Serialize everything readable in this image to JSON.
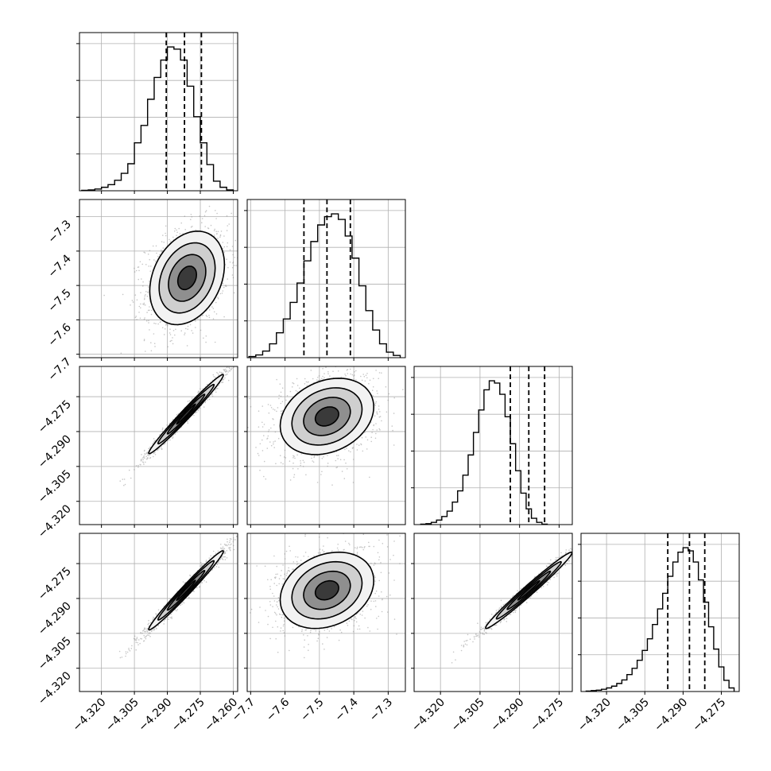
{
  "chart_data": {
    "type": "corner",
    "parameters": 4,
    "panels": [
      {
        "type": "histogram",
        "row": 0,
        "col": 0,
        "xlim": [
          -4.33,
          -4.258
        ],
        "bins": [
          -4.3275,
          -4.3245,
          -4.3215,
          -4.3185,
          -4.3155,
          -4.3125,
          -4.3095,
          -4.3065,
          -4.3035,
          -4.3005,
          -4.2975,
          -4.2945,
          -4.2915,
          -4.2885,
          -4.2855,
          -4.2825,
          -4.2795,
          -4.2765,
          -4.2735,
          -4.2705,
          -4.2675,
          -4.2645,
          -4.2615
        ],
        "counts": [
          1,
          2,
          4,
          8,
          14,
          24,
          40,
          62,
          110,
          150,
          210,
          260,
          300,
          330,
          325,
          300,
          240,
          170,
          110,
          60,
          22,
          8,
          2
        ],
        "quantiles": [
          -4.2905,
          -4.2822,
          -4.2745
        ],
        "yticks_count": 4
      },
      {
        "type": "histogram",
        "row": 1,
        "col": 1,
        "xlim": [
          -7.71,
          -7.25
        ],
        "bins": [
          -7.695,
          -7.675,
          -7.655,
          -7.635,
          -7.615,
          -7.595,
          -7.575,
          -7.555,
          -7.535,
          -7.515,
          -7.495,
          -7.475,
          -7.455,
          -7.435,
          -7.415,
          -7.395,
          -7.375,
          -7.355,
          -7.335,
          -7.315,
          -7.295,
          -7.275
        ],
        "counts": [
          2,
          5,
          12,
          25,
          45,
          70,
          100,
          135,
          175,
          210,
          240,
          255,
          260,
          250,
          220,
          180,
          130,
          85,
          50,
          25,
          10,
          4
        ],
        "quantiles": [
          -7.545,
          -7.478,
          -7.41
        ],
        "yticks_count": 4
      },
      {
        "type": "histogram",
        "row": 2,
        "col": 2,
        "xlim": [
          -4.33,
          -4.27
        ],
        "bins": [
          -4.3265,
          -4.3245,
          -4.3225,
          -4.3205,
          -4.3185,
          -4.3165,
          -4.3145,
          -4.3125,
          -4.3105,
          -4.3085,
          -4.3065,
          -4.3045,
          -4.3025,
          -4.3005,
          -4.2985,
          -4.2965,
          -4.2945,
          -4.2925,
          -4.2905,
          -4.2885,
          -4.2865,
          -4.2845,
          -4.2825,
          -4.2805
        ],
        "counts": [
          1,
          2,
          5,
          10,
          18,
          30,
          50,
          75,
          110,
          155,
          205,
          255,
          300,
          320,
          315,
          290,
          240,
          180,
          120,
          70,
          35,
          14,
          5,
          1
        ],
        "quantiles": [
          -4.2935,
          -4.2865,
          -4.2805
        ],
        "yticks_count": 4
      },
      {
        "type": "histogram",
        "row": 3,
        "col": 3,
        "xlim": [
          -4.33,
          -4.268
        ],
        "bins": [
          -4.327,
          -4.325,
          -4.323,
          -4.321,
          -4.319,
          -4.317,
          -4.315,
          -4.313,
          -4.311,
          -4.309,
          -4.307,
          -4.305,
          -4.303,
          -4.301,
          -4.299,
          -4.297,
          -4.295,
          -4.293,
          -4.291,
          -4.289,
          -4.287,
          -4.285,
          -4.283,
          -4.281,
          -4.279,
          -4.277,
          -4.275,
          -4.273,
          -4.271
        ],
        "counts": [
          1,
          2,
          3,
          5,
          8,
          12,
          18,
          26,
          38,
          52,
          70,
          92,
          118,
          150,
          185,
          220,
          258,
          290,
          312,
          322,
          315,
          290,
          250,
          200,
          145,
          95,
          55,
          25,
          8
        ],
        "quantiles": [
          -4.296,
          -4.2875,
          -4.2815
        ],
        "yticks_count": 4
      },
      {
        "type": "density",
        "row": 1,
        "col": 0,
        "xlim": [
          -4.33,
          -4.258
        ],
        "ylim": [
          -7.71,
          -7.25
        ],
        "center": [
          -4.281,
          -7.478
        ],
        "sd": [
          0.0085,
          0.068
        ],
        "corr": 0.28
      },
      {
        "type": "density",
        "row": 2,
        "col": 0,
        "xlim": [
          -4.33,
          -4.258
        ],
        "ylim": [
          -4.33,
          -4.262
        ],
        "center": [
          -4.2815,
          -4.2825
        ],
        "sd": [
          0.0085,
          0.0085
        ],
        "corr": 0.985
      },
      {
        "type": "density",
        "row": 2,
        "col": 1,
        "xlim": [
          -7.71,
          -7.25
        ],
        "ylim": [
          -4.33,
          -4.262
        ],
        "center": [
          -7.478,
          -4.2835
        ],
        "sd": [
          0.068,
          0.0082
        ],
        "corr": 0.25
      },
      {
        "type": "density",
        "row": 3,
        "col": 0,
        "xlim": [
          -4.33,
          -4.258
        ],
        "ylim": [
          -4.33,
          -4.262
        ],
        "center": [
          -4.2815,
          -4.2865
        ],
        "sd": [
          0.0085,
          0.0085
        ],
        "corr": 0.985
      },
      {
        "type": "density",
        "row": 3,
        "col": 1,
        "xlim": [
          -7.71,
          -7.25
        ],
        "ylim": [
          -4.33,
          -4.262
        ],
        "center": [
          -7.478,
          -4.2865
        ],
        "sd": [
          0.068,
          0.0082
        ],
        "corr": 0.25
      },
      {
        "type": "density",
        "row": 3,
        "col": 2,
        "xlim": [
          -4.33,
          -4.27
        ],
        "ylim": [
          -4.33,
          -4.262
        ],
        "center": [
          -4.2865,
          -4.2865
        ],
        "sd": [
          0.0082,
          0.0082
        ],
        "corr": 0.985
      }
    ],
    "x_axes": [
      {
        "col": 0,
        "ticks": [
          -4.32,
          -4.305,
          -4.29,
          -4.275,
          -4.26
        ],
        "labels": [
          "−4.320",
          "−4.305",
          "−4.290",
          "−4.275",
          "−4.260"
        ]
      },
      {
        "col": 1,
        "ticks": [
          -7.7,
          -7.6,
          -7.5,
          -7.4,
          -7.3
        ],
        "labels": [
          "−7.7",
          "−7.6",
          "−7.5",
          "−7.4",
          "−7.3"
        ]
      },
      {
        "col": 2,
        "ticks": [
          -4.32,
          -4.305,
          -4.29,
          -4.275
        ],
        "labels": [
          "−4.320",
          "−4.305",
          "−4.290",
          "−4.275"
        ]
      },
      {
        "col": 3,
        "ticks": [
          -4.32,
          -4.305,
          -4.29,
          -4.275
        ],
        "labels": [
          "−4.320",
          "−4.305",
          "−4.290",
          "−4.275"
        ]
      }
    ],
    "y_axes": [
      {
        "row": 1,
        "ticks": [
          -7.7,
          -7.6,
          -7.5,
          -7.4,
          -7.3
        ],
        "labels": [
          "−7.7",
          "−7.6",
          "−7.5",
          "−7.4",
          "−7.3"
        ]
      },
      {
        "row": 2,
        "ticks": [
          -4.32,
          -4.305,
          -4.29,
          -4.275
        ],
        "labels": [
          "−4.320",
          "−4.305",
          "−4.290",
          "−4.275"
        ]
      },
      {
        "row": 3,
        "ticks": [
          -4.32,
          -4.305,
          -4.29,
          -4.275
        ],
        "labels": [
          "−4.320",
          "−4.305",
          "−4.290",
          "−4.275"
        ]
      }
    ],
    "grid": true,
    "colors": {
      "line": "#000000",
      "grid": "#b0b0b0",
      "points": "#808080"
    }
  }
}
